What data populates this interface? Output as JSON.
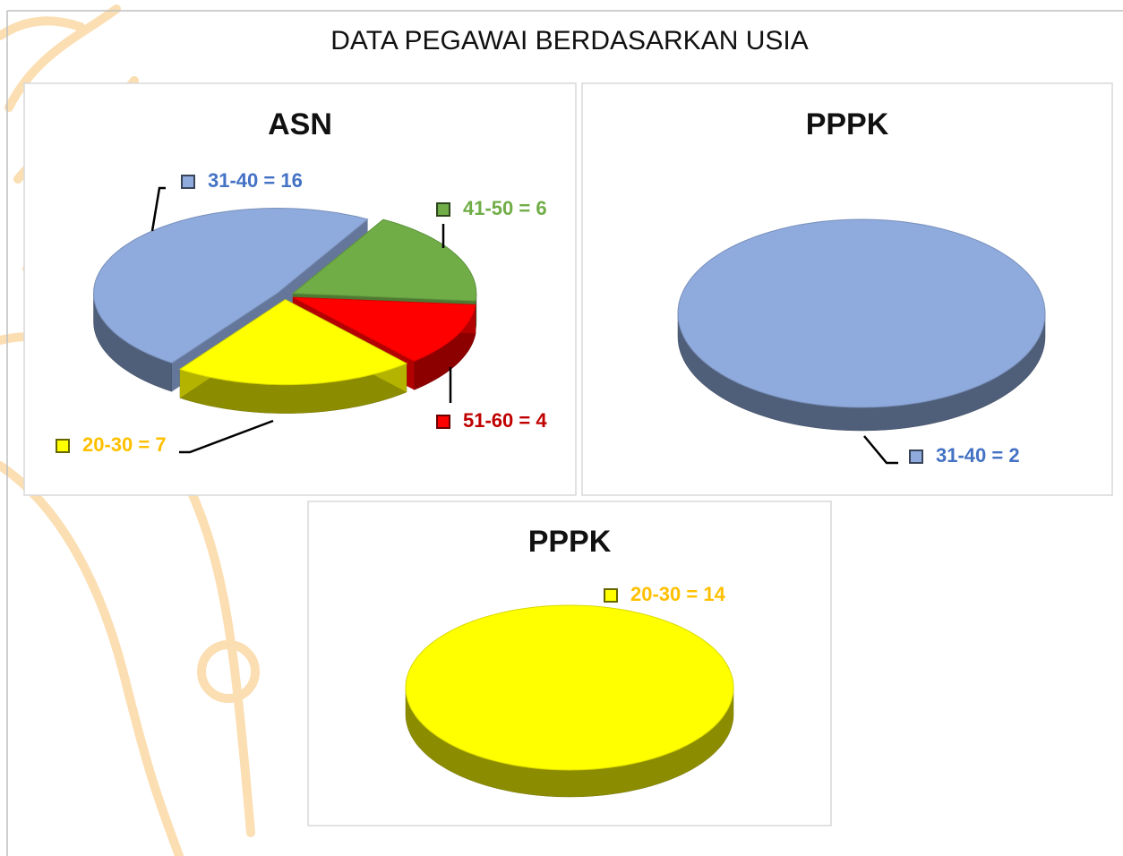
{
  "title": "DATA PEGAWAI BERDASARKAN USIA",
  "chart_data": [
    {
      "type": "pie",
      "title": "ASN",
      "values": [
        16,
        6,
        4,
        7
      ],
      "value_labels": [
        "31-40 = 16",
        "41-50 =  6",
        "51-60 =  4",
        "20-30 =  7"
      ],
      "colors": [
        "#8faadc",
        "#70ad47",
        "#ff0000",
        "#ffff00"
      ],
      "label_colors": [
        "#4472c4",
        "#70ad47",
        "#c00000",
        "#ffc000"
      ]
    },
    {
      "type": "pie",
      "title": "PPPK",
      "values": [
        2
      ],
      "value_labels": [
        "31-40 = 2"
      ],
      "colors": [
        "#8faadc"
      ],
      "label_colors": [
        "#4472c4"
      ]
    },
    {
      "type": "pie",
      "title": "PPPK",
      "values": [
        14
      ],
      "value_labels": [
        "20-30 = 14"
      ],
      "colors": [
        "#ffff00"
      ],
      "label_colors": [
        "#ffc000"
      ]
    }
  ]
}
